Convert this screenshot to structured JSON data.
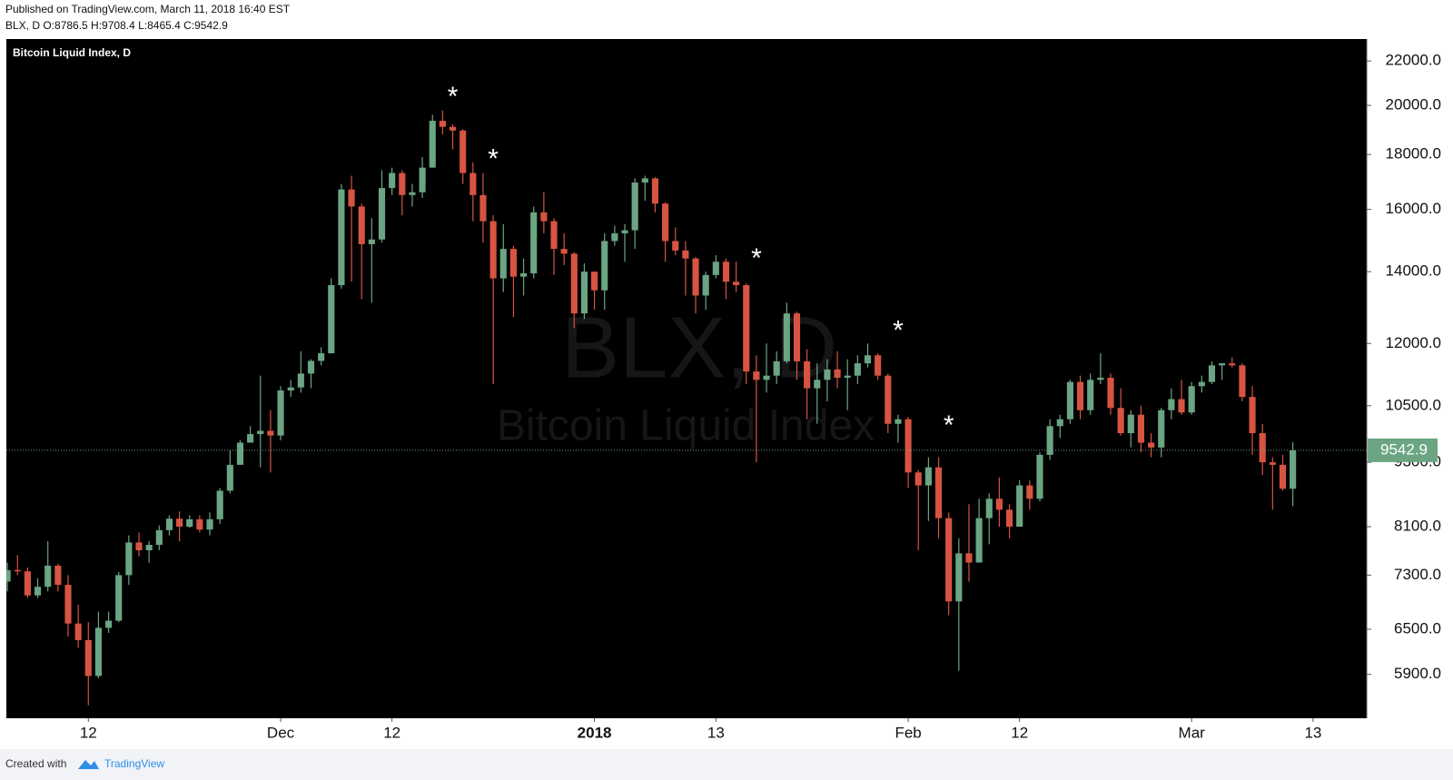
{
  "header": {
    "published": "Published on TradingView.com, March 11, 2018 16:40 EST",
    "symbol_line": "BLX, D O:8786.5 H:9708.4 L:8465.4 C:9542.9"
  },
  "chart_data": {
    "type": "candlestick",
    "legend": "Bitcoin Liquid Index, D",
    "watermark": {
      "symbol": "BLX, D",
      "name": "Bitcoin Liquid Index"
    },
    "up_color": "#6ba583",
    "down_color": "#d75442",
    "background": "#000000",
    "log_scale": true,
    "ylim": [
      5370,
      23060
    ],
    "yticks": [
      {
        "value": 5900,
        "label": "5900.0"
      },
      {
        "value": 6500,
        "label": "6500.0"
      },
      {
        "value": 7300,
        "label": "7300.0"
      },
      {
        "value": 8100,
        "label": "8100.0"
      },
      {
        "value": 9300,
        "label": "9300.0"
      },
      {
        "value": 10500,
        "label": "10500.0"
      },
      {
        "value": 12000,
        "label": "12000.0"
      },
      {
        "value": 14000,
        "label": "14000.0"
      },
      {
        "value": 16000,
        "label": "16000.0"
      },
      {
        "value": 18000,
        "label": "18000.0"
      },
      {
        "value": 20000,
        "label": "20000.0"
      },
      {
        "value": 22000,
        "label": "22000.0"
      }
    ],
    "xlim": [
      -0.1,
      134.3
    ],
    "xticks": [
      {
        "value": 8,
        "label": "12"
      },
      {
        "value": 27,
        "label": "Dec"
      },
      {
        "value": 38,
        "label": "12"
      },
      {
        "value": 58,
        "label": "2018"
      },
      {
        "value": 70,
        "label": "13"
      },
      {
        "value": 89,
        "label": "Feb"
      },
      {
        "value": 100,
        "label": "12"
      },
      {
        "value": 117,
        "label": "Mar"
      },
      {
        "value": 129,
        "label": "13"
      }
    ],
    "open": [
      7200,
      7380,
      7360,
      6990,
      7120,
      7450,
      7150,
      6580,
      6350,
      5880,
      6520,
      6620,
      7300,
      7830,
      7700,
      7790,
      8040,
      8240,
      8100,
      8230,
      8050,
      8230,
      8750,
      9250,
      9700,
      9880,
      9950,
      9850,
      10850,
      10920,
      11250,
      11560,
      11750,
      13600,
      16700,
      16100,
      14850,
      15000,
      16750,
      17300,
      16500,
      16600,
      17500,
      19350,
      19100,
      18950,
      17300,
      16500,
      15600,
      13800,
      14700,
      13850,
      13950,
      15900,
      15600,
      14700,
      14550,
      12800,
      14000,
      13450,
      14950,
      15200,
      15300,
      16950,
      17100,
      16200,
      14950,
      14650,
      14400,
      13300,
      13900,
      14300,
      13700,
      13600,
      11300,
      11100,
      11200,
      11550,
      12800,
      11550,
      10900,
      11100,
      11350,
      11150,
      11200,
      11500,
      11700,
      11200,
      10100,
      10200,
      9100,
      8850,
      9200,
      8250,
      6900,
      7650,
      7500,
      8250,
      8600,
      8400,
      8100,
      8850,
      8600,
      9450,
      10050,
      10200,
      11050,
      10400,
      11100,
      11150,
      10450,
      9900,
      10300,
      9700,
      9600,
      10400,
      10650,
      10350,
      10950,
      11050,
      11450,
      11500,
      11450,
      10700,
      9900,
      9300,
      9250,
      8786.5
    ],
    "high": [
      7500,
      7620,
      7420,
      7250,
      7850,
      7480,
      7300,
      6850,
      6600,
      6750,
      6750,
      7350,
      7950,
      8000,
      7850,
      8120,
      8300,
      8370,
      8300,
      8300,
      8350,
      8800,
      9550,
      9750,
      10050,
      11200,
      10400,
      10950,
      11100,
      11800,
      11600,
      11900,
      13800,
      16900,
      17200,
      16200,
      15700,
      17400,
      17500,
      17400,
      16900,
      17900,
      19600,
      19780,
      19200,
      19000,
      17700,
      17300,
      15800,
      15500,
      14800,
      14400,
      16100,
      16600,
      15700,
      15200,
      14600,
      14250,
      14000,
      15200,
      15450,
      15500,
      17100,
      17200,
      17150,
      16250,
      15400,
      14950,
      14450,
      14000,
      14500,
      14400,
      14300,
      13650,
      11700,
      12000,
      11800,
      13100,
      12850,
      11850,
      11500,
      11600,
      11800,
      11600,
      11700,
      12000,
      11750,
      11250,
      10300,
      10250,
      9150,
      9400,
      9400,
      8350,
      7900,
      8500,
      8600,
      8700,
      9000,
      8500,
      8950,
      8950,
      9500,
      10200,
      10300,
      11100,
      11200,
      11250,
      11750,
      11250,
      10900,
      10400,
      10500,
      9900,
      10450,
      10900,
      11100,
      11050,
      11200,
      11550,
      11500,
      11650,
      11500,
      10950,
      10100,
      9400,
      9450,
      9708.4
    ],
    "low": [
      7050,
      7300,
      6950,
      6950,
      7050,
      7050,
      6400,
      6250,
      5520,
      5850,
      6450,
      6600,
      7150,
      7600,
      7500,
      7700,
      7950,
      7850,
      8080,
      8000,
      7950,
      8150,
      8700,
      9250,
      9700,
      9200,
      9100,
      9750,
      10700,
      10800,
      10900,
      11450,
      11750,
      13500,
      13700,
      13200,
      13100,
      14900,
      16500,
      15800,
      16100,
      16400,
      17500,
      18800,
      18200,
      16900,
      15600,
      14900,
      11000,
      13400,
      12700,
      13300,
      13800,
      15200,
      13900,
      14200,
      12400,
      12650,
      12900,
      12900,
      14800,
      14300,
      14700,
      16300,
      15900,
      14300,
      14500,
      13300,
      12800,
      12900,
      13800,
      13200,
      13400,
      11000,
      9300,
      10800,
      11000,
      11500,
      11100,
      10200,
      10100,
      10600,
      10900,
      10400,
      11000,
      11400,
      11100,
      9900,
      9700,
      8800,
      7700,
      8200,
      7900,
      6700,
      5950,
      7200,
      7500,
      7800,
      8100,
      7900,
      8100,
      8400,
      8550,
      9350,
      9800,
      10100,
      10200,
      10300,
      11000,
      10300,
      9850,
      9600,
      9500,
      9400,
      9400,
      10200,
      10300,
      10300,
      10800,
      11000,
      11100,
      11400,
      10600,
      9450,
      9050,
      8400,
      8750,
      8465.4
    ],
    "close": [
      7380,
      7360,
      6990,
      7120,
      7450,
      7150,
      6580,
      6350,
      5880,
      6520,
      6620,
      7300,
      7830,
      7700,
      7790,
      8040,
      8240,
      8100,
      8230,
      8050,
      8230,
      8750,
      9250,
      9700,
      9880,
      9950,
      9850,
      10850,
      10920,
      11250,
      11560,
      11750,
      13600,
      16700,
      16100,
      14850,
      15000,
      16750,
      17300,
      16500,
      16600,
      17500,
      19350,
      19100,
      18950,
      17300,
      16500,
      15600,
      13800,
      14700,
      13850,
      13950,
      15900,
      15600,
      14700,
      14550,
      12800,
      14000,
      13450,
      14950,
      15200,
      15300,
      16950,
      17100,
      16200,
      14950,
      14650,
      14400,
      13300,
      13900,
      14300,
      13700,
      13600,
      11300,
      11100,
      11200,
      11550,
      12800,
      11550,
      10900,
      11100,
      11350,
      11150,
      11200,
      11500,
      11700,
      11200,
      10100,
      10200,
      9100,
      8850,
      9200,
      8250,
      6900,
      7650,
      7500,
      8250,
      8600,
      8400,
      8100,
      8850,
      8600,
      9450,
      10050,
      10200,
      11050,
      10400,
      11100,
      11150,
      10450,
      9900,
      10300,
      9700,
      9600,
      10400,
      10650,
      10350,
      10950,
      11050,
      11450,
      11500,
      11450,
      10700,
      9900,
      9300,
      9250,
      8786.5,
      9542.9
    ],
    "annotations": [
      {
        "text": "*",
        "x": 44,
        "y": 20560
      },
      {
        "text": "*",
        "x": 48,
        "y": 17980
      },
      {
        "text": "*",
        "x": 74,
        "y": 14530
      },
      {
        "text": "*",
        "x": 88,
        "y": 12440
      },
      {
        "text": "*",
        "x": 93,
        "y": 10150
      }
    ]
  },
  "footer": {
    "created": "Created with",
    "brand": "TradingView"
  }
}
